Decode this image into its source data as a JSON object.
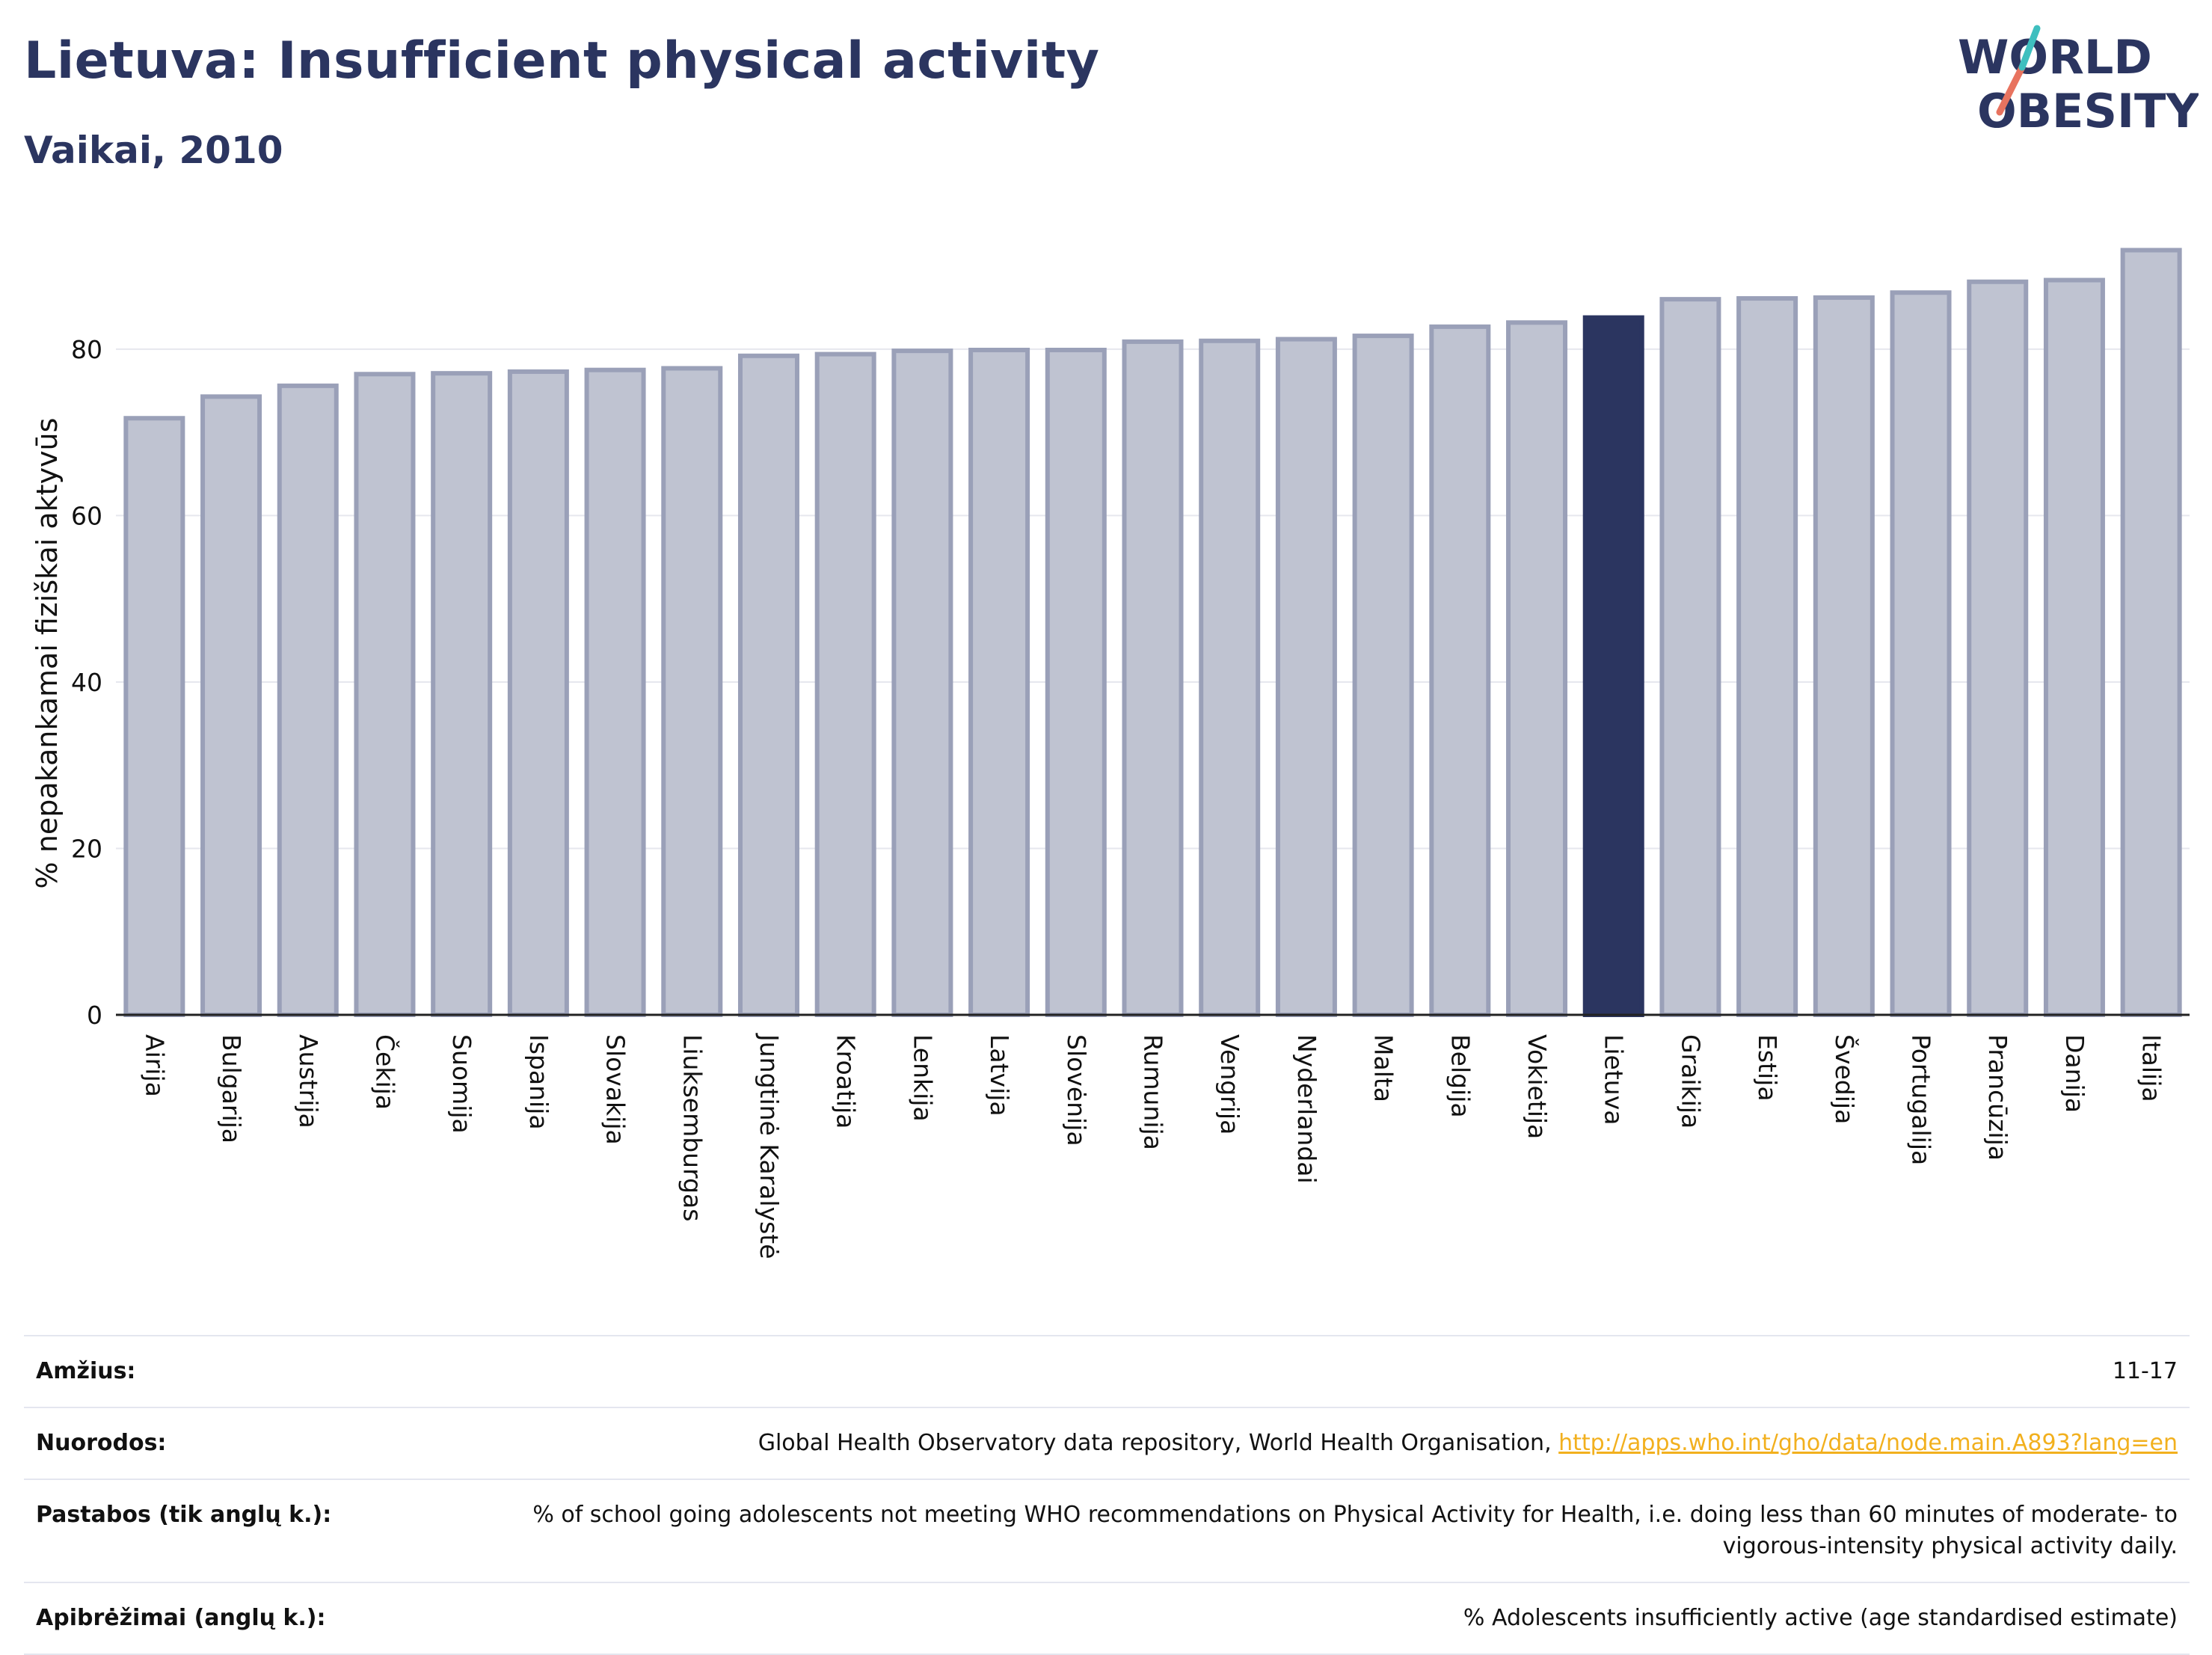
{
  "header": {
    "title": "Lietuva: Insufficient physical activity",
    "subtitle": "Vaikai, 2010"
  },
  "logo": {
    "line1": "WORLD",
    "line2": "OBESITY",
    "accent_colors": [
      "#3fbfbf",
      "#e8735f"
    ]
  },
  "colors": {
    "highlight": "#2b3560",
    "bar": "#bfc3d1",
    "bar_border": "#9aa0b8"
  },
  "chart_data": {
    "type": "bar",
    "categories": [
      "Airija",
      "Bulgarija",
      "Austrija",
      "Čekija",
      "Suomija",
      "Ispanija",
      "Slovakija",
      "Liuksemburgas",
      "Jungtinė Karalystė",
      "Kroatija",
      "Lenkija",
      "Latvija",
      "Slovėnija",
      "Rumunija",
      "Vengrija",
      "Nyderlandai",
      "Malta",
      "Belgija",
      "Vokietija",
      "Lietuva",
      "Graikija",
      "Estija",
      "Švedija",
      "Portugalija",
      "Prancūzija",
      "Danija",
      "Italija"
    ],
    "values": [
      71.7,
      74.3,
      75.6,
      77.0,
      77.1,
      77.3,
      77.5,
      77.7,
      79.2,
      79.4,
      79.8,
      79.9,
      79.9,
      80.9,
      81.0,
      81.2,
      81.6,
      82.7,
      83.2,
      83.8,
      86.0,
      86.1,
      86.2,
      86.8,
      88.1,
      88.3,
      91.9
    ],
    "highlight": "Lietuva",
    "ylabel": "% nepakankamai fiziškai aktyvūs",
    "xlabel": "",
    "ylim": [
      0,
      95
    ],
    "yticks": [
      0,
      20,
      40,
      60,
      80
    ],
    "grid": true
  },
  "info": [
    {
      "label": "Amžius:",
      "value": "11-17"
    },
    {
      "label": "Nuorodos:",
      "value": "Global Health Observatory data repository, World Health Organisation, ",
      "link": "http://apps.who.int/gho/data/node.main.A893?lang=en"
    },
    {
      "label": "Pastabos (tik anglų k.):",
      "value": "% of school going adolescents not meeting WHO recommendations on Physical Activity for Health, i.e. doing less than 60 minutes of moderate- to vigorous-intensity physical activity daily."
    },
    {
      "label": "Apibrėžimai (anglų k.):",
      "value": "% Adolescents insufficiently active (age standardised estimate)"
    }
  ]
}
